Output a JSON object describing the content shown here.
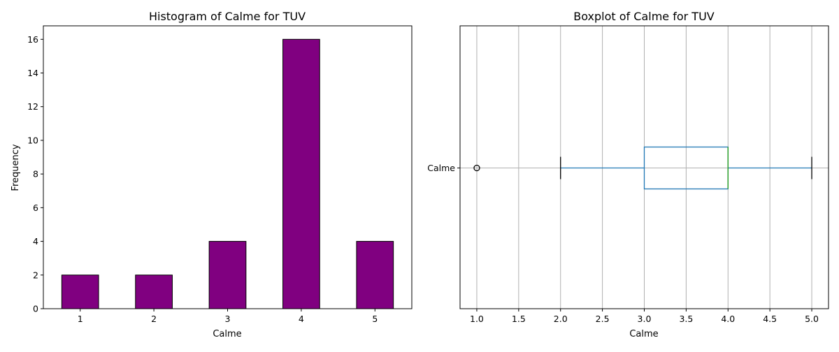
{
  "chart_data": [
    {
      "type": "bar",
      "title": "Histogram of Calme for TUV",
      "xlabel": "Calme",
      "ylabel": "Frequency",
      "categories": [
        "1",
        "2",
        "3",
        "4",
        "5"
      ],
      "values": [
        2,
        2,
        4,
        16,
        4
      ],
      "ylim": [
        0,
        16.8
      ],
      "yticks": [
        0,
        2,
        4,
        6,
        8,
        10,
        12,
        14,
        16
      ],
      "grid": false,
      "colors": {
        "bar_fill": "#800080",
        "bar_edge": "#000000"
      }
    },
    {
      "type": "boxplot",
      "title": "Boxplot of Calme for TUV",
      "xlabel": "Calme",
      "categories": [
        "Calme"
      ],
      "orientation": "horizontal",
      "stats": {
        "whisker_low": 2.0,
        "q1": 3.0,
        "median": 4.0,
        "q3": 4.0,
        "whisker_high": 5.0,
        "outliers": [
          1.0
        ]
      },
      "xlim": [
        0.8,
        5.2
      ],
      "xticks": [
        "1.0",
        "1.5",
        "2.0",
        "2.5",
        "3.0",
        "3.5",
        "4.0",
        "4.5",
        "5.0"
      ],
      "grid": true,
      "colors": {
        "box": "#1f77b4",
        "median": "#2ca02c",
        "whisker_cap": "#000000",
        "grid": "#b0b0b0"
      }
    }
  ]
}
